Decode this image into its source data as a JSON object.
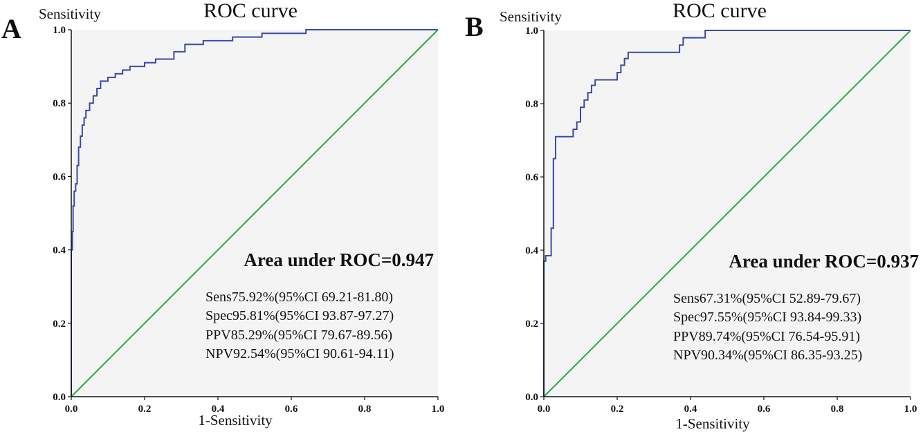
{
  "chart_data": [
    {
      "type": "line",
      "panel_label": "A",
      "title": "ROC curve",
      "xlabel": "1-Sensitivity",
      "ylabel": "Sensitivity",
      "xlim": [
        0,
        1
      ],
      "ylim": [
        0,
        1
      ],
      "xticks": [
        "0.0",
        "0.2",
        "0.4",
        "0.6",
        "0.8",
        "1.0"
      ],
      "yticks": [
        "0.0",
        "0.2",
        "0.4",
        "0.6",
        "0.8",
        "1.0"
      ],
      "background": "#f4f4f4",
      "series": [
        {
          "color": "#3a4aa6",
          "step": true,
          "points": [
            [
              0,
              0
            ],
            [
              0,
              0.4
            ],
            [
              0.003,
              0.45
            ],
            [
              0.005,
              0.52
            ],
            [
              0.008,
              0.56
            ],
            [
              0.012,
              0.58
            ],
            [
              0.016,
              0.63
            ],
            [
              0.02,
              0.68
            ],
            [
              0.025,
              0.71
            ],
            [
              0.03,
              0.74
            ],
            [
              0.035,
              0.76
            ],
            [
              0.04,
              0.78
            ],
            [
              0.05,
              0.8
            ],
            [
              0.06,
              0.82
            ],
            [
              0.07,
              0.84
            ],
            [
              0.08,
              0.86
            ],
            [
              0.1,
              0.87
            ],
            [
              0.12,
              0.88
            ],
            [
              0.14,
              0.89
            ],
            [
              0.16,
              0.9
            ],
            [
              0.2,
              0.91
            ],
            [
              0.23,
              0.92
            ],
            [
              0.28,
              0.94
            ],
            [
              0.31,
              0.96
            ],
            [
              0.36,
              0.97
            ],
            [
              0.44,
              0.98
            ],
            [
              0.52,
              0.99
            ],
            [
              0.64,
              1.0
            ],
            [
              1.0,
              1.0
            ]
          ]
        },
        {
          "color": "#2aa84a",
          "step": false,
          "points": [
            [
              0,
              0
            ],
            [
              1,
              1
            ]
          ]
        }
      ],
      "annotations": {
        "auc": "Area under ROC=0.947",
        "stats": [
          "Sens75.92%(95%CI 69.21-81.80)",
          "Spec95.81%(95%CI 93.87-97.27)",
          "PPV85.29%(95%CI 79.67-89.56)",
          "NPV92.54%(95%CI 90.61-94.11)"
        ]
      }
    },
    {
      "type": "line",
      "panel_label": "B",
      "title": "ROC curve",
      "xlabel": "1-Sensitivity",
      "ylabel": "Sensitivity",
      "xlim": [
        0,
        1
      ],
      "ylim": [
        0,
        1
      ],
      "xticks": [
        "0.0",
        "0.2",
        "0.4",
        "0.6",
        "0.8",
        "1.0"
      ],
      "yticks": [
        "0.0",
        "0.2",
        "0.4",
        "0.6",
        "0.8",
        "1.0"
      ],
      "background": "#f4f4f4",
      "series": [
        {
          "color": "#3a4aa6",
          "step": true,
          "points": [
            [
              0,
              0
            ],
            [
              0,
              0.37
            ],
            [
              0.005,
              0.385
            ],
            [
              0.02,
              0.46
            ],
            [
              0.026,
              0.65
            ],
            [
              0.032,
              0.71
            ],
            [
              0.08,
              0.73
            ],
            [
              0.09,
              0.75
            ],
            [
              0.1,
              0.79
            ],
            [
              0.11,
              0.81
            ],
            [
              0.12,
              0.83
            ],
            [
              0.13,
              0.85
            ],
            [
              0.14,
              0.865
            ],
            [
              0.2,
              0.885
            ],
            [
              0.21,
              0.905
            ],
            [
              0.22,
              0.923
            ],
            [
              0.23,
              0.94
            ],
            [
              0.37,
              0.96
            ],
            [
              0.38,
              0.98
            ],
            [
              0.44,
              1.0
            ],
            [
              1.0,
              1.0
            ]
          ]
        },
        {
          "color": "#2aa84a",
          "step": false,
          "points": [
            [
              0,
              0
            ],
            [
              1,
              1
            ]
          ]
        }
      ],
      "annotations": {
        "auc": "Area under ROC=0.937",
        "stats": [
          "Sens67.31%(95%CI 52.89-79.67)",
          "Spec97.55%(95%CI 93.84-99.33)",
          "PPV89.74%(95%CI 76.54-95.91)",
          "NPV90.34%(95%CI 86.35-93.25)"
        ]
      }
    }
  ]
}
